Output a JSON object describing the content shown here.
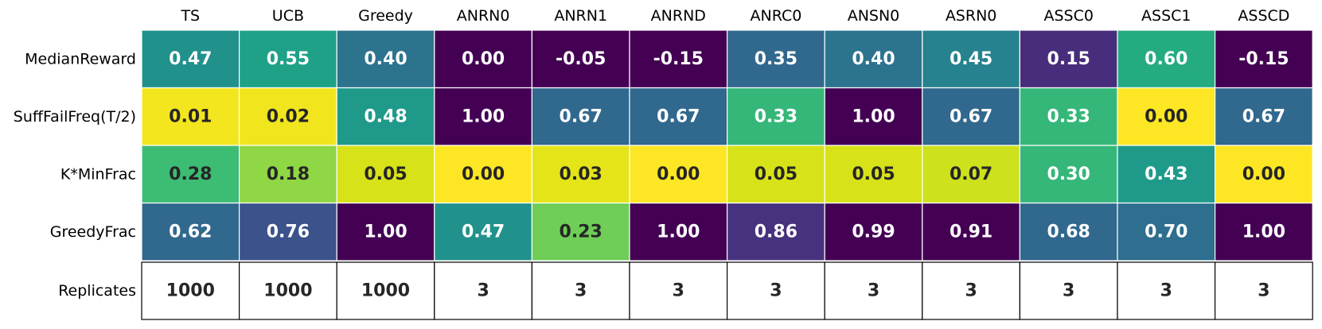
{
  "chart_data": {
    "type": "heatmap",
    "columns": [
      "TS",
      "UCB",
      "Greedy",
      "ANRN0",
      "ANRN1",
      "ANRND",
      "ANRC0",
      "ANSN0",
      "ASRN0",
      "ASSC0",
      "ASSC1",
      "ASSCD"
    ],
    "rows": [
      {
        "label": "MedianReward",
        "values": [
          "0.47",
          "0.55",
          "0.40",
          "0.00",
          "-0.05",
          "-0.15",
          "0.35",
          "0.40",
          "0.45",
          "0.15",
          "0.60",
          "-0.15"
        ]
      },
      {
        "label": "SuffFailFreq(T/2)",
        "values": [
          "0.01",
          "0.02",
          "0.48",
          "1.00",
          "0.67",
          "0.67",
          "0.33",
          "1.00",
          "0.67",
          "0.33",
          "0.00",
          "0.67"
        ]
      },
      {
        "label": "K*MinFrac",
        "values": [
          "0.28",
          "0.18",
          "0.05",
          "0.00",
          "0.03",
          "0.00",
          "0.05",
          "0.05",
          "0.07",
          "0.30",
          "0.43",
          "0.00"
        ]
      },
      {
        "label": "GreedyFrac",
        "values": [
          "0.62",
          "0.76",
          "1.00",
          "0.47",
          "0.23",
          "1.00",
          "0.86",
          "0.99",
          "0.91",
          "0.68",
          "0.70",
          "1.00"
        ]
      }
    ],
    "cell_colors": [
      [
        "#21918c",
        "#1fa188",
        "#2c738e",
        "#440154",
        "#440154",
        "#440154",
        "#31688e",
        "#2c738e",
        "#26828e",
        "#472d7b",
        "#25ab82",
        "#440154"
      ],
      [
        "#f4e61e",
        "#f1e51d",
        "#1f9a8a",
        "#440154",
        "#31688e",
        "#31688e",
        "#35b779",
        "#440154",
        "#31688e",
        "#35b779",
        "#fde725",
        "#31688e"
      ],
      [
        "#3dbc74",
        "#8fd744",
        "#d8e219",
        "#fde725",
        "#e5e419",
        "#fde725",
        "#d8e219",
        "#d8e219",
        "#cde11d",
        "#35b779",
        "#1f9a8a",
        "#fde725"
      ],
      [
        "#31688e",
        "#3b528b",
        "#440154",
        "#21918c",
        "#6ece58",
        "#440154",
        "#46327e",
        "#440154",
        "#440154",
        "#31688e",
        "#2e6e8e",
        "#440154"
      ]
    ],
    "cell_text_colors": [
      [
        "#ffffff",
        "#ffffff",
        "#ffffff",
        "#ffffff",
        "#ffffff",
        "#ffffff",
        "#ffffff",
        "#ffffff",
        "#ffffff",
        "#ffffff",
        "#ffffff",
        "#ffffff"
      ],
      [
        "#262626",
        "#262626",
        "#ffffff",
        "#ffffff",
        "#ffffff",
        "#ffffff",
        "#ffffff",
        "#ffffff",
        "#ffffff",
        "#ffffff",
        "#262626",
        "#ffffff"
      ],
      [
        "#262626",
        "#262626",
        "#262626",
        "#262626",
        "#262626",
        "#262626",
        "#262626",
        "#262626",
        "#262626",
        "#ffffff",
        "#ffffff",
        "#262626"
      ],
      [
        "#ffffff",
        "#ffffff",
        "#ffffff",
        "#ffffff",
        "#262626",
        "#ffffff",
        "#ffffff",
        "#ffffff",
        "#ffffff",
        "#ffffff",
        "#ffffff",
        "#ffffff"
      ]
    ],
    "colormap": "viridis",
    "replicates": {
      "label": "Replicates",
      "values": [
        "1000",
        "1000",
        "1000",
        "3",
        "3",
        "3",
        "3",
        "3",
        "3",
        "3",
        "3",
        "3"
      ]
    }
  }
}
